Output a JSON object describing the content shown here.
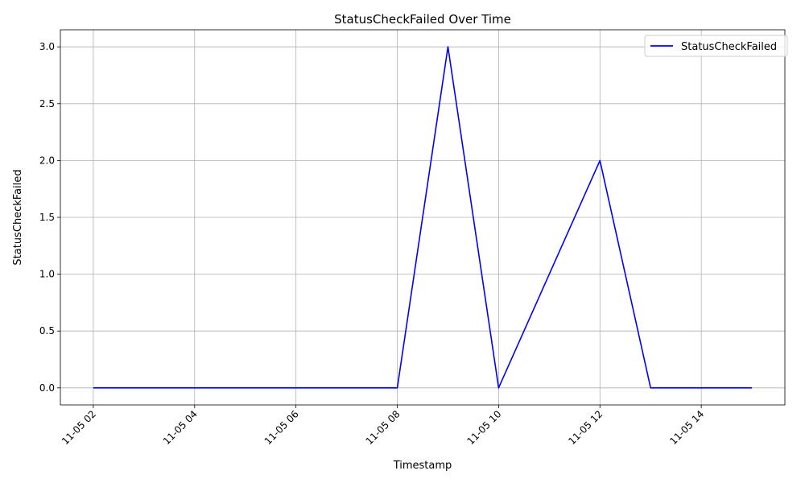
{
  "chart_data": {
    "type": "line",
    "title": "StatusCheckFailed Over Time",
    "xlabel": "Timestamp",
    "ylabel": "StatusCheckFailed",
    "x": [
      "11-05 02",
      "11-05 03",
      "11-05 04",
      "11-05 05",
      "11-05 06",
      "11-05 07",
      "11-05 08",
      "11-05 09",
      "11-05 10",
      "11-05 11",
      "11-05 12",
      "11-05 13",
      "11-05 14",
      "11-05 15"
    ],
    "x_hours": [
      2,
      3,
      4,
      5,
      6,
      7,
      8,
      9,
      10,
      11,
      12,
      13,
      14,
      15
    ],
    "series": [
      {
        "name": "StatusCheckFailed",
        "color": "#0000ff",
        "values": [
          0,
          0,
          0,
          0,
          0,
          0,
          0,
          3,
          0,
          1,
          2,
          0,
          0,
          0
        ]
      }
    ],
    "xticks": [
      "11-05 02",
      "11-05 04",
      "11-05 06",
      "11-05 08",
      "11-05 10",
      "11-05 12",
      "11-05 14"
    ],
    "xtick_hours": [
      2,
      4,
      6,
      8,
      10,
      12,
      14
    ],
    "yticks": [
      0.0,
      0.5,
      1.0,
      1.5,
      2.0,
      2.5,
      3.0
    ],
    "ytick_labels": [
      "0.0",
      "0.5",
      "1.0",
      "1.5",
      "2.0",
      "2.5",
      "3.0"
    ],
    "xlim": [
      1.35,
      15.65
    ],
    "ylim": [
      -0.15,
      3.15
    ],
    "grid": true,
    "legend": "top-right"
  }
}
